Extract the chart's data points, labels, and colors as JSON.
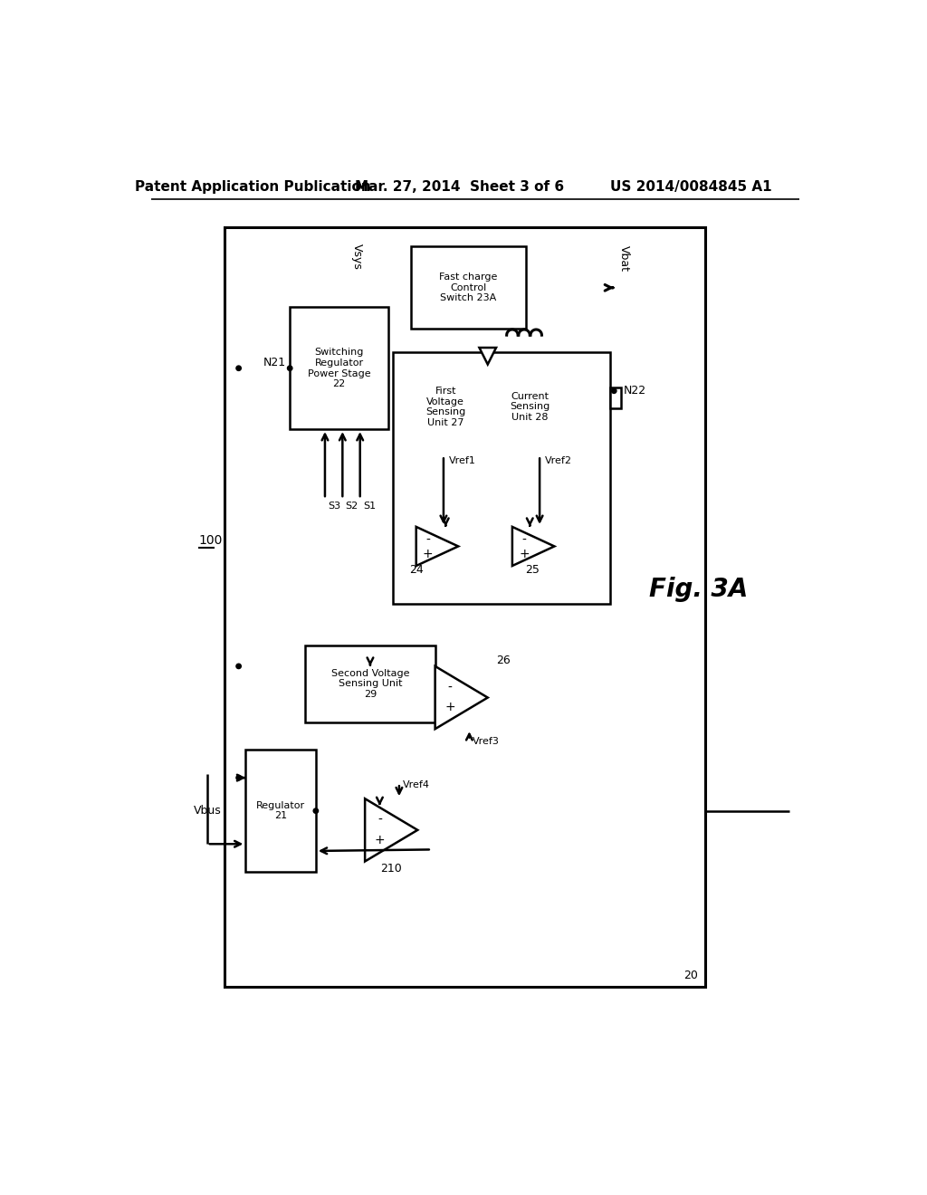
{
  "bg_color": "#ffffff",
  "title_left": "Patent Application Publication",
  "title_mid": "Mar. 27, 2014  Sheet 3 of 6",
  "title_right": "US 2014/0084845 A1",
  "fig_label": "Fig. 3A",
  "diagram_label": "20",
  "block_100": "100",
  "vsys_label": "Vsys",
  "vbat_label": "Vbat",
  "vbus_label": "Vbus",
  "n21_label": "N21",
  "n22_label": "N22",
  "s1_label": "S1",
  "s2_label": "S2",
  "s3_label": "S3",
  "vref1_label": "Vref1",
  "vref2_label": "Vref2",
  "vref3_label": "Vref3",
  "vref4_label": "Vref4",
  "box_fcs_label": "Fast charge\nControl\nSwitch 23A",
  "box_srps_label": "Switching\nRegulator\nPower Stage\n22",
  "box_fvsu_label": "First\nVoltage\nSensing\nUnit 27",
  "box_csu_label": "Current\nSensing\nUnit 28",
  "box_svsu_label": "Second Voltage\nSensing Unit\n29",
  "box_reg_label": "Regulator\n21",
  "amp24_label": "24",
  "amp25_label": "25",
  "amp26_label": "26",
  "amp210_label": "210",
  "lw": 1.8,
  "lw_thick": 2.2,
  "fs_header": 11,
  "fs_label": 9,
  "fs_block": 8,
  "fs_fig": 20
}
